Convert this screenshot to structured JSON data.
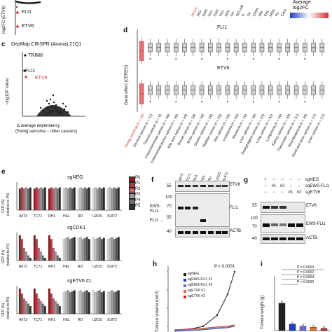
{
  "panel_a": {
    "ylabel": "log2FC (ETV6)",
    "fli1": "FLI1",
    "etv6": "ETV6"
  },
  "panel_b_top": {
    "col_labels_partial": [
      "NCI-H",
      "NCI-",
      "DMS",
      "NCI-",
      "SMS",
      "NCI-",
      "MOL",
      "SK-",
      "OCI-AM",
      "U",
      "SK",
      "CFPA",
      "Mia",
      "CAL",
      "MDA",
      "Pa",
      "Caco"
    ],
    "legend_title": "Average",
    "legend_sub": "log2FC"
  },
  "panel_c": {
    "letter": "c",
    "title": "DepMap CRISPR (Avana) 21Q1",
    "ylabel": "−log10P value",
    "xlabel": "Δ average dependency",
    "xlabel2": "(Ewing sarcoma − other cancers)",
    "labels": {
      "trim8": "TRIM8",
      "fli1": "FLI1",
      "etv6": "ETV6"
    }
  },
  "panel_d": {
    "letter": "d",
    "ylabel": "Gene effect (CERES)",
    "gene1": "FLI1",
    "gene2": "ETV6",
    "categories": [
      "Ewing sarcoma (n = 16)",
      "Cervical cancer (n = 11)",
      "Thyroid cancer (n = 6)",
      "Colon/colorectal cancer (n = 36)",
      "Endometrial/uterine cancer (n = 26)",
      "Bile duct cancer (n = 26)",
      "Breast cancer (n = 28)",
      "Brain cancer (n = 26)",
      "Gastric cancer (n = 16)",
      "Bladder cancer (n = 25)",
      "Skin cancer (n = 55)",
      "Leukaemia (n = 44)",
      "Myeloma (n = 16)",
      "Liver cancer (n = 26)",
      "Oesophageal cancer (n = 23)",
      "Lung cancer (n = 92)",
      "Lymphoma (n = 26)",
      "Kidney cancer (n = 33)",
      "Pancreatic cancer (n = 31)",
      "Neuroblastoma (n = 29)",
      "Head and neck cancer (n = 27)",
      "Liver cancer (n = 21)"
    ]
  },
  "panel_e": {
    "letter": "e",
    "ylabel1": "GFP (%)",
    "ylabel2": "(relative to P0)",
    "titles": [
      "sgNEG",
      "sgCDK1",
      "sgETV6 #1"
    ],
    "cells": [
      "A673",
      "TC71",
      "RH1",
      "HEL",
      "RD",
      "U2OS",
      "SUIT2"
    ],
    "legend": [
      "P0",
      "P1",
      "P2",
      "P3",
      "P4",
      "P5"
    ],
    "legend_colors": [
      "#8b1a1a",
      "#b03a48",
      "#c95f6e",
      "#9a9a9a",
      "#6f6f6f",
      "#2f2f2f"
    ]
  },
  "panel_f": {
    "letter": "f",
    "cells": [
      "A673",
      "TC71",
      "RH1",
      "HEL",
      "RD",
      "U2OS",
      "SUIT2"
    ],
    "mw_etv6": "55",
    "mw_ews": [
      "100",
      "70",
      "55"
    ],
    "mw_actb": "40",
    "labels": {
      "etv6": "ETV6",
      "ews": "EWS-",
      "ews2": "FLI1",
      "fli1": "FLI1",
      "fli1arrow": "FLI1 →",
      "fli1b": "FLI1",
      "actb": "ACTB"
    }
  },
  "panel_g": {
    "letter": "g",
    "rows": [
      "sgNEG",
      "sgEWS-FLI1",
      "sgETV6"
    ],
    "signs_row1": [
      "+",
      "−",
      "−",
      "−",
      "−"
    ],
    "signs_row2": [
      "−",
      "#1",
      "#2",
      "−",
      "−"
    ],
    "signs_row3": [
      "−",
      "−",
      "−",
      "#1",
      "#2"
    ],
    "mw_etv6": "55",
    "mw_ews": [
      "100",
      "70"
    ],
    "mw_actb": "40",
    "labels": {
      "etv6": "ETV6",
      "ews": "EWS-FLI1",
      "actb": "ACTB"
    }
  },
  "panel_h": {
    "letter": "h",
    "ylabel": "Tumour volume (mm³)",
    "pvalue": "P < 0.0001",
    "legend": [
      "sgNEG",
      "sgEWS-FLI1 #1",
      "sgEWS-FLI1 #2",
      "sgETV6 #1",
      "sgETV6 #2"
    ],
    "legend_colors": [
      "#222222",
      "#1d3fbf",
      "#6a6ad0",
      "#e0703a",
      "#c22c2c"
    ],
    "ticks": [
      "1,500",
      "1,000",
      "500",
      "0"
    ]
  },
  "panel_i": {
    "letter": "i",
    "ylabel": "Tumour weight (g)",
    "pvalues": [
      "P = 0.0003",
      "P = 0.0002",
      "P = 0.0004",
      "P = 0.0002"
    ],
    "ticks": [
      "5",
      "4",
      "3",
      "2",
      "1",
      "0"
    ],
    "bar_values": [
      2.5,
      0.6,
      0.4,
      0.3,
      0.2
    ],
    "bar_colors": [
      "#222222",
      "#1d3fbf",
      "#6a6ad0",
      "#e0703a",
      "#c22c2c"
    ]
  }
}
